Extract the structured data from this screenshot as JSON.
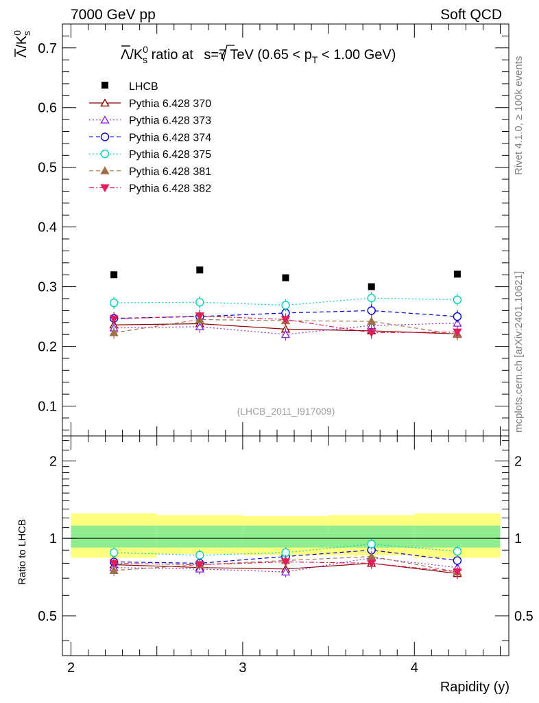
{
  "header": {
    "left": "7000 GeV pp",
    "right": "Soft QCD"
  },
  "side_text": {
    "rivet": "Rivet 4.1.0, ≥ 100k events",
    "mcplots": "mcplots.cern.ch [arXiv:2401.10621]"
  },
  "watermark": "(LHCB_2011_I917009)",
  "chart_data": [
    {
      "type": "scatter",
      "panel": "main",
      "title": "Λ̅/K⁰s ratio at √s=7 TeV (0.65 < pT < 1.00 GeV)",
      "title_parts": {
        "ratio_label": "/K",
        "ratio_sup": "0",
        "ratio_sub": "s",
        "mid": " ratio at ",
        "sqrt_s": "s=7 TeV (0.65 < p",
        "pt_sub": "T",
        "tail": " < 1.00 GeV)"
      },
      "ylabel": "Λ̅/K⁰s",
      "ylim": [
        0.05,
        0.74
      ],
      "xlim": [
        1.95,
        4.55
      ],
      "yticks": [
        0.1,
        0.2,
        0.3,
        0.4,
        0.5,
        0.6,
        0.7
      ],
      "ytick_labels": [
        "0.1",
        "0.2",
        "0.3",
        "0.4",
        "0.5",
        "0.6",
        "0.7"
      ],
      "x": [
        2.25,
        2.75,
        3.25,
        3.75,
        4.25
      ],
      "data": {
        "name": "LHCB",
        "values": [
          0.32,
          0.328,
          0.315,
          0.3,
          0.321
        ],
        "color": "#000000"
      },
      "series": [
        {
          "name": "Pythia 6.428 370",
          "color": "#8b0000",
          "marker": "triangle-open",
          "dash": "solid",
          "values": [
            0.236,
            0.238,
            0.229,
            0.226,
            0.221
          ]
        },
        {
          "name": "Pythia 6.428 373",
          "color": "#8a2be2",
          "marker": "triangle-open",
          "dash": "dotted",
          "values": [
            0.231,
            0.233,
            0.22,
            0.235,
            0.239
          ]
        },
        {
          "name": "Pythia 6.428 374",
          "color": "#0000d0",
          "marker": "circle-open",
          "dash": "dashed",
          "values": [
            0.247,
            0.25,
            0.256,
            0.26,
            0.25
          ]
        },
        {
          "name": "Pythia 6.428 375",
          "color": "#00d4b4",
          "marker": "circle-open",
          "dash": "dotted",
          "values": [
            0.273,
            0.274,
            0.269,
            0.281,
            0.278
          ]
        },
        {
          "name": "Pythia 6.428 381",
          "color": "#a0704a",
          "marker": "triangle-filled",
          "dash": "dashed",
          "values": [
            0.223,
            0.245,
            0.243,
            0.242,
            0.22
          ]
        },
        {
          "name": "Pythia 6.428 382",
          "color": "#e0205a",
          "marker": "triangle-down-filled",
          "dash": "dashdot",
          "values": [
            0.246,
            0.251,
            0.245,
            0.223,
            0.224
          ]
        }
      ]
    },
    {
      "type": "scatter",
      "panel": "ratio",
      "ylabel": "Ratio to LHCB",
      "xlabel": "Rapidity (y)",
      "ylim": [
        0.35,
        2.5
      ],
      "xlim": [
        1.95,
        4.55
      ],
      "yscale": "log",
      "yticks": [
        0.5,
        1,
        2
      ],
      "ytick_labels": [
        "0.5",
        "1",
        "2"
      ],
      "xticks": [
        2,
        3,
        4
      ],
      "xtick_labels": [
        "2",
        "3",
        "4"
      ],
      "x": [
        2.25,
        2.75,
        3.25,
        3.75,
        4.25
      ],
      "bins": [
        [
          2.0,
          2.5
        ],
        [
          2.5,
          3.0
        ],
        [
          3.0,
          3.5
        ],
        [
          3.5,
          4.0
        ],
        [
          4.0,
          4.5
        ]
      ],
      "band_inner": [
        [
          0.92,
          1.12
        ],
        [
          0.92,
          1.12
        ],
        [
          0.92,
          1.12
        ],
        [
          0.92,
          1.12
        ],
        [
          0.92,
          1.12
        ]
      ],
      "band_outer": [
        [
          0.84,
          1.25
        ],
        [
          0.87,
          1.23
        ],
        [
          0.86,
          1.22
        ],
        [
          0.86,
          1.23
        ],
        [
          0.84,
          1.25
        ]
      ],
      "series": [
        {
          "name": "Pythia 6.428 370",
          "values": [
            0.79,
            0.77,
            0.76,
            0.8,
            0.73
          ]
        },
        {
          "name": "Pythia 6.428 373",
          "values": [
            0.77,
            0.76,
            0.74,
            0.84,
            0.77
          ]
        },
        {
          "name": "Pythia 6.428 374",
          "values": [
            0.81,
            0.8,
            0.85,
            0.9,
            0.82
          ]
        },
        {
          "name": "Pythia 6.428 375",
          "values": [
            0.88,
            0.86,
            0.88,
            0.95,
            0.89
          ]
        },
        {
          "name": "Pythia 6.428 381",
          "values": [
            0.75,
            0.79,
            0.82,
            0.85,
            0.74
          ]
        },
        {
          "name": "Pythia 6.428 382",
          "values": [
            0.8,
            0.79,
            0.81,
            0.8,
            0.74
          ]
        }
      ]
    }
  ]
}
